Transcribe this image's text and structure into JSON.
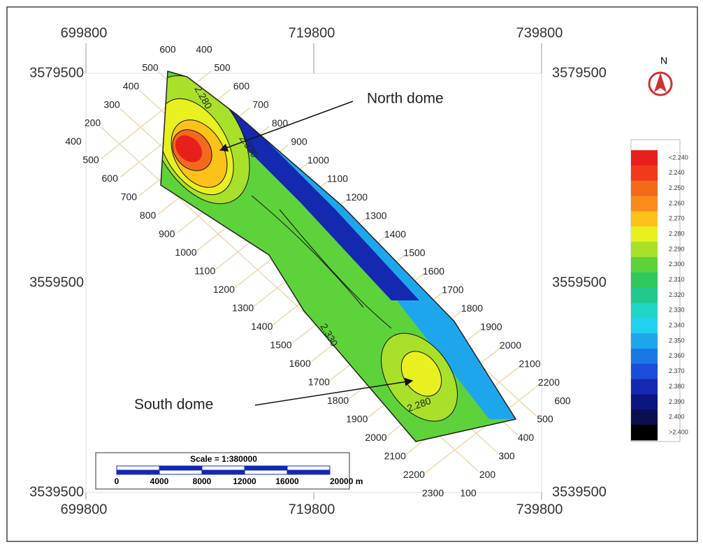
{
  "map": {
    "x_coords_top": [
      "699800",
      "719800",
      "739800"
    ],
    "x_coords_bottom": [
      "699800",
      "719800",
      "739800"
    ],
    "y_coords_left": [
      "3579500",
      "3559500",
      "3539500"
    ],
    "y_coords_right": [
      "3579500",
      "3559500",
      "3539500"
    ],
    "grid_labels": [
      "600",
      "400",
      "500",
      "400",
      "300",
      "200",
      "400",
      "500",
      "600",
      "700",
      "800",
      "900",
      "1000",
      "1100",
      "1200",
      "1300",
      "1400",
      "1500",
      "1600",
      "1700",
      "1800",
      "1900",
      "2000",
      "2100",
      "2200",
      "2300",
      "500",
      "600",
      "700",
      "800",
      "900",
      "1000",
      "1100",
      "1200",
      "1300",
      "1400",
      "1500",
      "1600",
      "1700",
      "1800",
      "1900",
      "2000",
      "2100",
      "2200",
      "600",
      "500",
      "400",
      "300",
      "200",
      "100"
    ],
    "contour_labels": [
      "2.280",
      "2.330",
      "2.330",
      "2.280"
    ],
    "annotations": [
      "North dome",
      "South dome"
    ],
    "north_label": "N",
    "legend": {
      "labels": [
        "<2.240",
        "2.240",
        "2.250",
        "2.260",
        "2.270",
        "2.280",
        "2.290",
        "2.300",
        "2.310",
        "2.320",
        "2.330",
        "2.340",
        "2.350",
        "2.360",
        "2.370",
        "2.380",
        "2.390",
        "2.400",
        ">2.400"
      ],
      "colors": [
        "#e8201c",
        "#f03a1a",
        "#f46a1c",
        "#f98b1b",
        "#fcc21a",
        "#e8f020",
        "#a8e02a",
        "#5ed23a",
        "#2fc85a",
        "#22c88e",
        "#20d6c4",
        "#22d0f0",
        "#1ea6ec",
        "#1a78e6",
        "#1a4ed8",
        "#1428b0",
        "#0c1680",
        "#081050",
        "#000000"
      ]
    },
    "scale": {
      "title": "Scale = 1:380000",
      "labels": [
        "0",
        "4000",
        "8000",
        "12000",
        "16000",
        "20000 m"
      ]
    }
  }
}
